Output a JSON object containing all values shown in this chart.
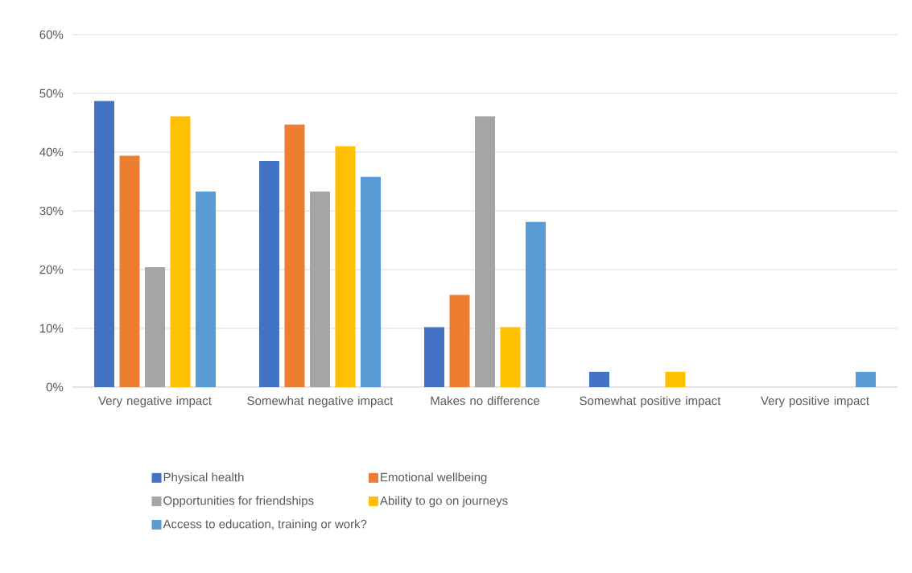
{
  "chart_data": {
    "type": "bar",
    "categories": [
      "Very negative impact",
      "Somewhat negative impact",
      "Makes no difference",
      "Somewhat positive impact",
      "Very positive impact"
    ],
    "series": [
      {
        "name": "Physical health",
        "color": "#4472c4",
        "values": [
          48.7,
          38.5,
          10.2,
          2.6,
          0
        ]
      },
      {
        "name": "Emotional wellbeing",
        "color": "#ed7d31",
        "values": [
          39.4,
          44.7,
          15.7,
          0,
          0
        ]
      },
      {
        "name": "Opportunities for friendships",
        "color": "#a5a5a5",
        "values": [
          20.4,
          33.3,
          46.1,
          0,
          0
        ]
      },
      {
        "name": "Ability to go on journeys",
        "color": "#ffc000",
        "values": [
          46.1,
          41.0,
          10.2,
          2.6,
          0
        ]
      },
      {
        "name": "Access to education, training or work?",
        "color": "#5b9bd5",
        "values": [
          33.3,
          35.8,
          28.1,
          0,
          2.6
        ]
      }
    ],
    "ylim": [
      0,
      60
    ],
    "yticks": [
      {
        "value": 0,
        "label": "0%"
      },
      {
        "value": 10,
        "label": "10%"
      },
      {
        "value": 20,
        "label": "20%"
      },
      {
        "value": 30,
        "label": "30%"
      },
      {
        "value": 40,
        "label": "40%"
      },
      {
        "value": 50,
        "label": "50%"
      },
      {
        "value": 60,
        "label": "60%"
      }
    ],
    "grid": "y",
    "legend": "bottom"
  }
}
